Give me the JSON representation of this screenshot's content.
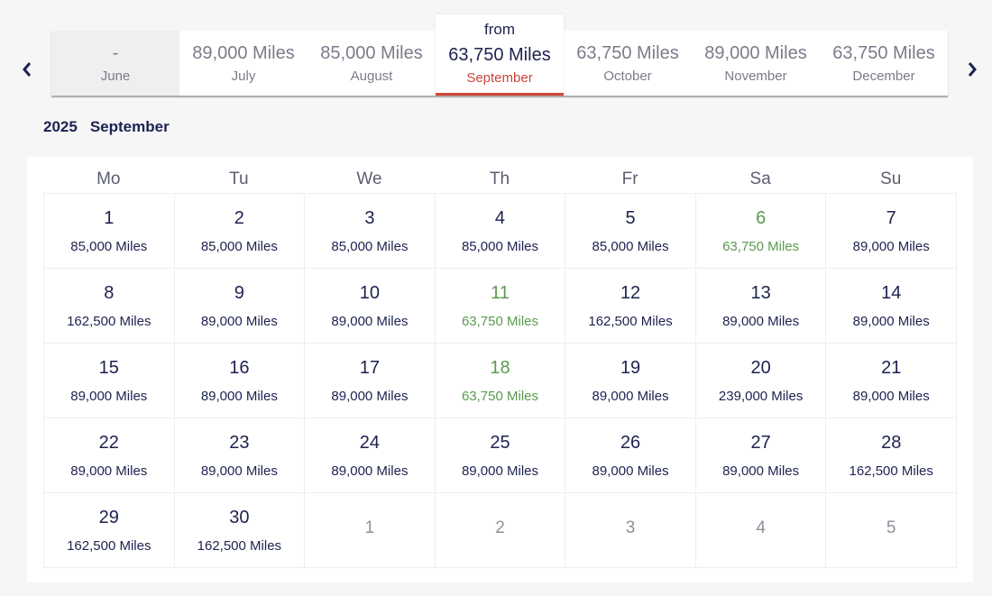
{
  "nav": {
    "prev_icon": "chevron-left-icon",
    "next_icon": "chevron-right-icon"
  },
  "months": [
    {
      "miles": "-",
      "month": "June",
      "state": "disabled"
    },
    {
      "miles": "89,000 Miles",
      "month": "July",
      "state": "normal"
    },
    {
      "miles": "85,000 Miles",
      "month": "August",
      "state": "normal"
    },
    {
      "prefix": "from",
      "miles": "63,750 Miles",
      "month": "September",
      "state": "selected"
    },
    {
      "miles": "63,750 Miles",
      "month": "October",
      "state": "normal"
    },
    {
      "miles": "89,000 Miles",
      "month": "November",
      "state": "normal"
    },
    {
      "miles": "63,750 Miles",
      "month": "December",
      "state": "normal"
    }
  ],
  "calendar": {
    "year": "2025",
    "month": "September",
    "weekdays": [
      "Mo",
      "Tu",
      "We",
      "Th",
      "Fr",
      "Sa",
      "Su"
    ],
    "days": [
      {
        "day": "1",
        "price": "85,000 Miles"
      },
      {
        "day": "2",
        "price": "85,000 Miles"
      },
      {
        "day": "3",
        "price": "85,000 Miles"
      },
      {
        "day": "4",
        "price": "85,000 Miles"
      },
      {
        "day": "5",
        "price": "85,000 Miles"
      },
      {
        "day": "6",
        "price": "63,750 Miles",
        "low": true
      },
      {
        "day": "7",
        "price": "89,000 Miles"
      },
      {
        "day": "8",
        "price": "162,500 Miles"
      },
      {
        "day": "9",
        "price": "89,000 Miles"
      },
      {
        "day": "10",
        "price": "89,000 Miles"
      },
      {
        "day": "11",
        "price": "63,750 Miles",
        "low": true
      },
      {
        "day": "12",
        "price": "162,500 Miles"
      },
      {
        "day": "13",
        "price": "89,000 Miles"
      },
      {
        "day": "14",
        "price": "89,000 Miles"
      },
      {
        "day": "15",
        "price": "89,000 Miles"
      },
      {
        "day": "16",
        "price": "89,000 Miles"
      },
      {
        "day": "17",
        "price": "89,000 Miles"
      },
      {
        "day": "18",
        "price": "63,750 Miles",
        "low": true
      },
      {
        "day": "19",
        "price": "89,000 Miles"
      },
      {
        "day": "20",
        "price": "239,000 Miles"
      },
      {
        "day": "21",
        "price": "89,000 Miles"
      },
      {
        "day": "22",
        "price": "89,000 Miles"
      },
      {
        "day": "23",
        "price": "89,000 Miles"
      },
      {
        "day": "24",
        "price": "89,000 Miles"
      },
      {
        "day": "25",
        "price": "89,000 Miles"
      },
      {
        "day": "26",
        "price": "89,000 Miles"
      },
      {
        "day": "27",
        "price": "89,000 Miles"
      },
      {
        "day": "28",
        "price": "162,500 Miles"
      },
      {
        "day": "29",
        "price": "162,500 Miles"
      },
      {
        "day": "30",
        "price": "162,500 Miles"
      },
      {
        "day": "1",
        "other": true
      },
      {
        "day": "2",
        "other": true
      },
      {
        "day": "3",
        "other": true
      },
      {
        "day": "4",
        "other": true
      },
      {
        "day": "5",
        "other": true
      }
    ]
  },
  "colors": {
    "accent": "#d2473a",
    "low_price": "#5a9a4e",
    "text": "#1d2250"
  }
}
